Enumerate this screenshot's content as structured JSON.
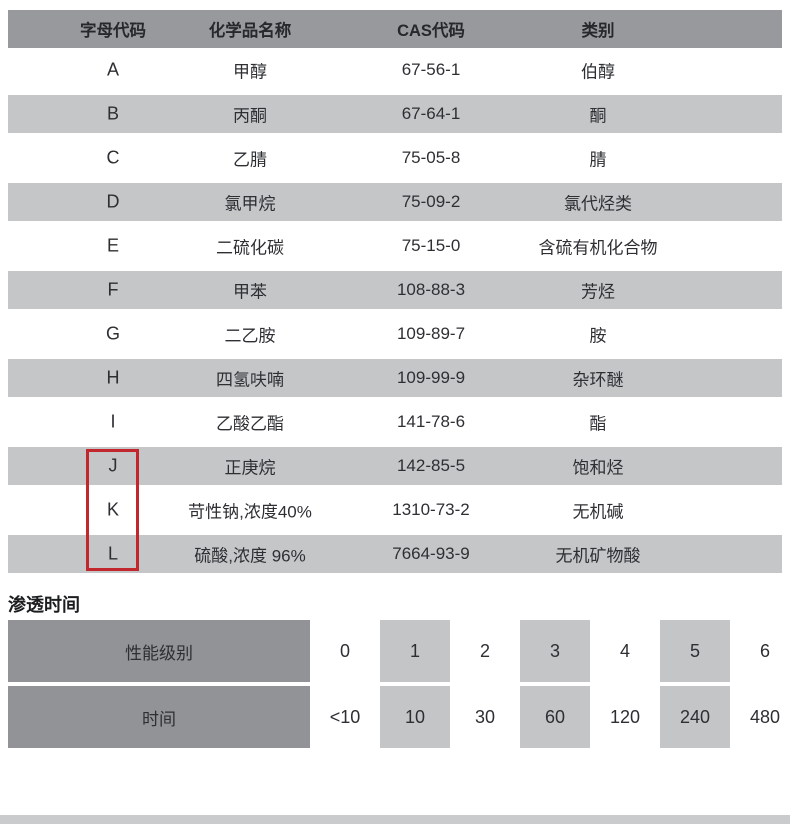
{
  "colors": {
    "header_gray": "#97999c",
    "stripe_gray": "#c4c6c8",
    "perm_label_gray": "#919396",
    "perm_highlight_gray": "#c3c5c7",
    "highlight_red": "#c1272d",
    "text": "#2d2f33",
    "background": "#ffffff"
  },
  "chemical_table": {
    "headers": {
      "code": "字母代码",
      "name": "化学品名称",
      "cas": "CAS代码",
      "category": "类别"
    },
    "rows": [
      {
        "code": "A",
        "name": "甲醇",
        "cas": "67-56-1",
        "category": "伯醇"
      },
      {
        "code": "B",
        "name": "丙酮",
        "cas": "67-64-1",
        "category": "酮"
      },
      {
        "code": "C",
        "name": "乙腈",
        "cas": "75-05-8",
        "category": "腈"
      },
      {
        "code": "D",
        "name": "氯甲烷",
        "cas": "75-09-2",
        "category": "氯代烃类"
      },
      {
        "code": "E",
        "name": "二硫化碳",
        "cas": "75-15-0",
        "category": "含硫有机化合物"
      },
      {
        "code": "F",
        "name": "甲苯",
        "cas": "108-88-3",
        "category": "芳烃"
      },
      {
        "code": "G",
        "name": "二乙胺",
        "cas": "109-89-7",
        "category": "胺"
      },
      {
        "code": "H",
        "name": "四氢呋喃",
        "cas": "109-99-9",
        "category": "杂环醚"
      },
      {
        "code": "I",
        "name": "乙酸乙酯",
        "cas": "141-78-6",
        "category": "酯"
      },
      {
        "code": "J",
        "name": "正庚烷",
        "cas": "142-85-5",
        "category": "饱和烃"
      },
      {
        "code": "K",
        "name": "苛性钠,浓度40%",
        "cas": "1310-73-2",
        "category": "无机碱"
      },
      {
        "code": "L",
        "name": "硫酸,浓度 96%",
        "cas": "7664-93-9",
        "category": "无机矿物酸"
      }
    ],
    "highlighted_codes": [
      "J",
      "K",
      "L"
    ]
  },
  "permeation": {
    "title": "渗透时间",
    "level_label": "性能级别",
    "time_label": "时间",
    "levels": [
      "0",
      "1",
      "2",
      "3",
      "4",
      "5",
      "6"
    ],
    "times": [
      "<10",
      "10",
      "30",
      "60",
      "120",
      "240",
      "480"
    ],
    "highlighted_levels": [
      "1",
      "3",
      "5"
    ]
  }
}
